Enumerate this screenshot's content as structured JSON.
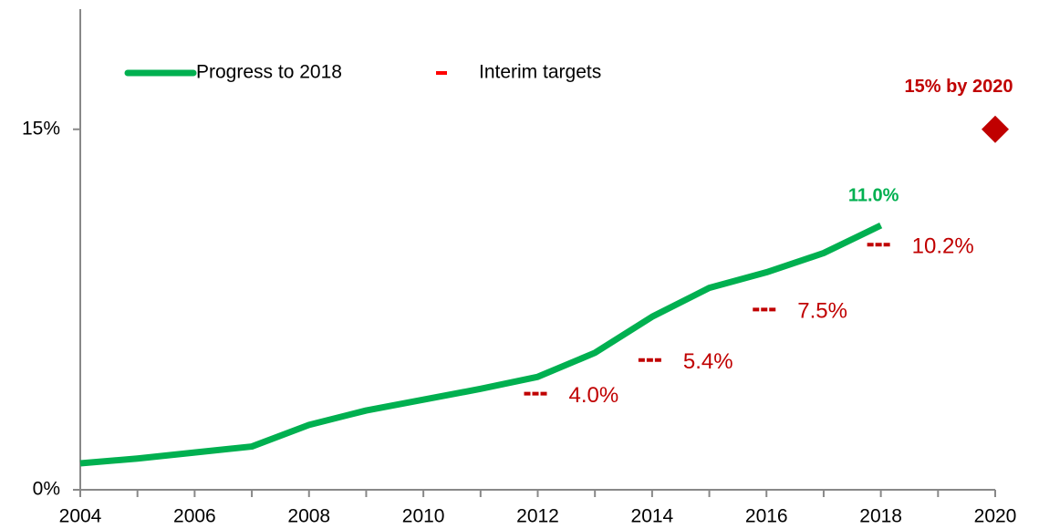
{
  "chart_data": {
    "type": "line",
    "xlim": [
      2004,
      2020
    ],
    "ylim": [
      0,
      20
    ],
    "xticks": [
      2004,
      2006,
      2008,
      2010,
      2012,
      2014,
      2016,
      2018,
      2020
    ],
    "xminorticks": [
      2005,
      2007,
      2009,
      2011,
      2013,
      2015,
      2017,
      2019
    ],
    "yticks": [
      {
        "value": 0,
        "label": "0%"
      },
      {
        "value": 15,
        "label": "15%"
      }
    ],
    "legend": "top",
    "series": [
      {
        "name": "Progress to 2018",
        "color": "#00b050",
        "marker": "line",
        "x": [
          2004,
          2005,
          2006,
          2007,
          2008,
          2009,
          2010,
          2011,
          2012,
          2013,
          2014,
          2015,
          2016,
          2017,
          2018
        ],
        "values": [
          1.1,
          1.3,
          1.55,
          1.8,
          2.7,
          3.3,
          3.75,
          4.2,
          4.7,
          5.7,
          7.2,
          8.4,
          9.05,
          9.85,
          11.0
        ],
        "value_labels": [
          null,
          null,
          null,
          null,
          null,
          null,
          null,
          null,
          null,
          null,
          null,
          null,
          null,
          null,
          "11.0%"
        ]
      },
      {
        "name": "Interim targets",
        "color": "#c00000",
        "marker": "dash",
        "x": [
          2012,
          2014,
          2016,
          2018
        ],
        "values": [
          4.0,
          5.4,
          7.5,
          10.2
        ],
        "value_labels": [
          "4.0%",
          "5.4%",
          "7.5%",
          "10.2%"
        ]
      },
      {
        "color": "#c00000",
        "marker": "diamond",
        "x": [
          2020
        ],
        "values": [
          15
        ],
        "value_labels": [
          "15% by 2020"
        ]
      }
    ]
  }
}
